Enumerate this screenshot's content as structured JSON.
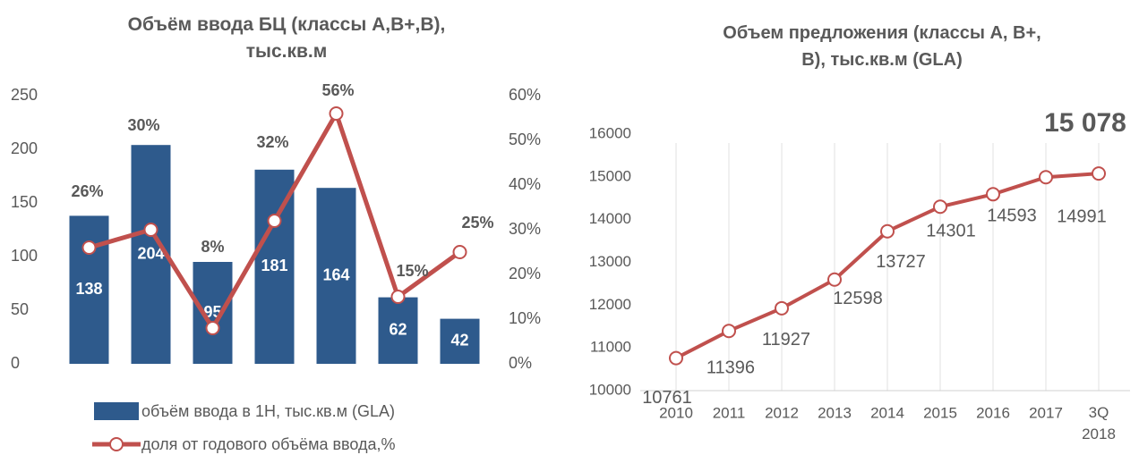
{
  "chart_data": [
    {
      "type": "bar-line",
      "title": "Объём ввода БЦ (классы А,В+,В), тыс.кв.м",
      "categories": [
        null,
        null,
        null,
        null,
        null,
        null,
        null
      ],
      "series": [
        {
          "name": "объём ввода в 1Н, тыс.кв.м (GLA)",
          "color": "#2e5a8c",
          "values": [
            138,
            204,
            95,
            181,
            164,
            62,
            42
          ]
        },
        {
          "name": "доля от годового объёма ввода,%",
          "color": "#c0504d",
          "axis": "y2",
          "values": [
            26,
            30,
            8,
            32,
            56,
            15,
            25
          ],
          "value_labels": [
            "26%",
            "30%",
            "8%",
            "32%",
            "56%",
            "15%",
            "25%"
          ]
        }
      ],
      "ylim": [
        0,
        250
      ],
      "yticks": [
        0,
        50,
        100,
        150,
        200,
        250
      ],
      "y2lim": [
        0,
        60
      ],
      "y2ticks": [
        {
          "value": 0,
          "label": "0%"
        },
        {
          "value": 10,
          "label": "10%"
        },
        {
          "value": 20,
          "label": "20%"
        },
        {
          "value": 30,
          "label": "30%"
        },
        {
          "value": 40,
          "label": "40%"
        },
        {
          "value": 50,
          "label": "50%"
        },
        {
          "value": 60,
          "label": "60%"
        }
      ],
      "legend": "bottom"
    },
    {
      "type": "line",
      "title": "Объем предложения (классы А, В+, В), тыс.кв.м (GLA)",
      "categories": [
        "2010",
        "2011",
        "2012",
        "2013",
        "2014",
        "2015",
        "2016",
        "2017",
        "3Q 2018"
      ],
      "series": [
        {
          "name": null,
          "color": "#c0504d",
          "values": [
            10761,
            11396,
            11927,
            12598,
            13727,
            14301,
            14593,
            14991,
            15078
          ],
          "value_labels": [
            "10761",
            "11396",
            "11927",
            "12598",
            "13727",
            "14301",
            "14593",
            "14991",
            "15 078"
          ]
        }
      ],
      "ylim": [
        10000,
        16000
      ],
      "yticks": [
        10000,
        11000,
        12000,
        13000,
        14000,
        15000,
        16000
      ],
      "grid": "vertical"
    }
  ]
}
